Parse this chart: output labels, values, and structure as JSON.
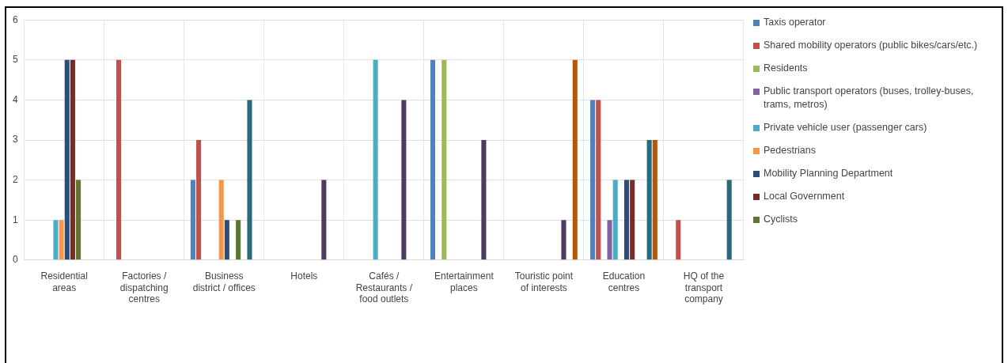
{
  "chart_data": {
    "type": "bar",
    "categories": [
      "Residential areas",
      "Factories / dispatching centres",
      "Business district / offices",
      "Hotels",
      "Cafés / Restaurants / food outlets",
      "Entertainment places",
      "Touristic point of interests",
      "Education centres",
      "HQ of the transport company"
    ],
    "series": [
      {
        "name": "Taxis operator",
        "color": "#4f81bd",
        "values": [
          0,
          0,
          2,
          0,
          0,
          5,
          0,
          4,
          0
        ]
      },
      {
        "name": "Shared mobility operators (public bikes/cars/etc.)",
        "color": "#c0504d",
        "values": [
          0,
          5,
          3,
          0,
          0,
          0,
          0,
          4,
          1
        ]
      },
      {
        "name": "Residents",
        "color": "#9bbb59",
        "values": [
          0,
          0,
          0,
          0,
          0,
          5,
          0,
          0,
          0
        ]
      },
      {
        "name": "Public transport operators (buses, trolley-buses, trams, metros)",
        "color": "#8064a2",
        "values": [
          0,
          0,
          0,
          0,
          0,
          0,
          0,
          1,
          0
        ]
      },
      {
        "name": "Private vehicle user (passenger cars)",
        "color": "#4bacc6",
        "values": [
          1,
          0,
          0,
          0,
          5,
          0,
          0,
          2,
          0
        ]
      },
      {
        "name": "Pedestrians",
        "color": "#f79646",
        "values": [
          1,
          0,
          2,
          0,
          0,
          0,
          0,
          0,
          0
        ]
      },
      {
        "name": "Mobility Planning Department",
        "color": "#2c4d75",
        "values": [
          5,
          0,
          1,
          0,
          0,
          0,
          0,
          2,
          0
        ]
      },
      {
        "name": "Local Government",
        "color": "#772c2a",
        "values": [
          5,
          0,
          0,
          0,
          0,
          0,
          0,
          2,
          0
        ]
      },
      {
        "name": "Cyclists",
        "color": "#5f7530",
        "values": [
          2,
          0,
          1,
          0,
          0,
          0,
          0,
          0,
          0
        ]
      },
      {
        "color": "#4d3b62",
        "values": [
          0,
          0,
          0,
          2,
          4,
          3,
          1,
          0,
          0
        ]
      },
      {
        "color": "#276a7c",
        "values": [
          0,
          0,
          4,
          0,
          0,
          0,
          0,
          3,
          2
        ]
      },
      {
        "color": "#b65708",
        "values": [
          0,
          0,
          0,
          0,
          0,
          0,
          5,
          3,
          0
        ]
      }
    ],
    "ylim": [
      0,
      6
    ],
    "yticks": [
      0,
      1,
      2,
      3,
      4,
      5,
      6
    ],
    "grid": true,
    "legend": "right"
  }
}
